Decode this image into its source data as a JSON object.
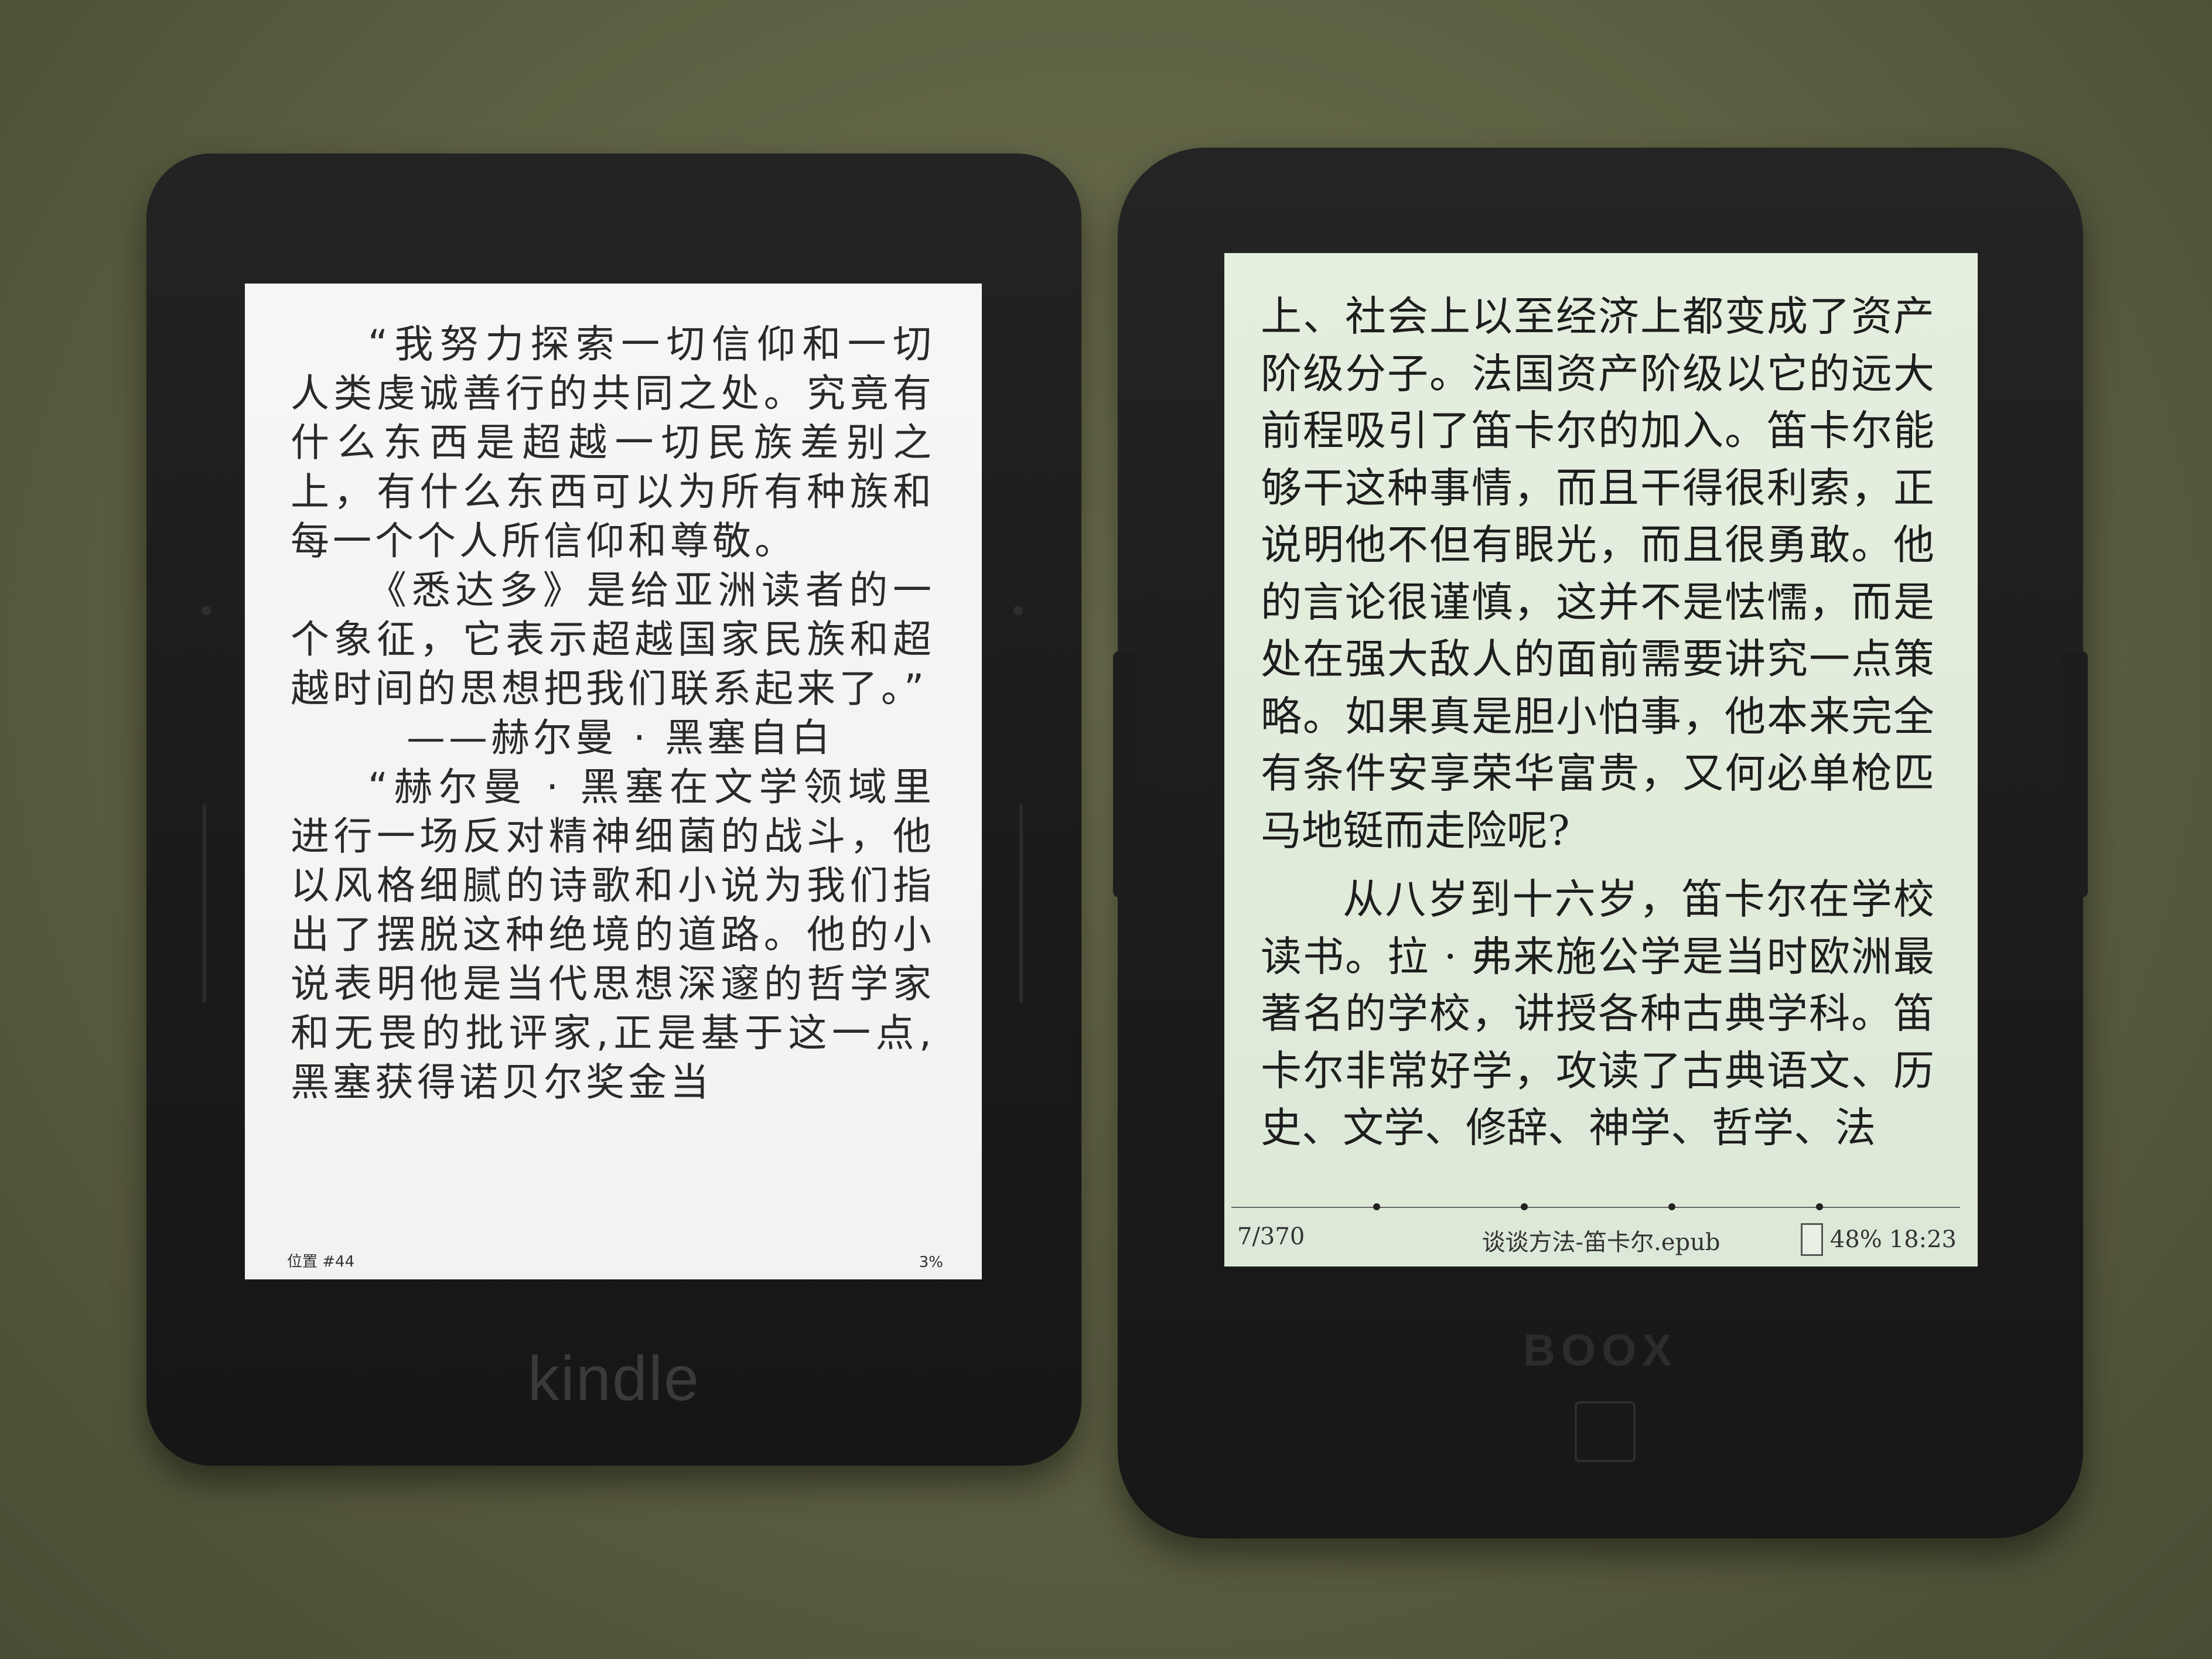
{
  "kindle": {
    "brand": "kindle",
    "paragraphs": [
      "“我努力探索一切信仰和一切人类虔诚善行的共同之处。究竟有什么东西是超越一切民族差别之上，有什么东西可以为所有种族和每一个个人所信仰和尊敬。",
      "《悉达多》是给亚洲读者的一个象征，它表示超越国家民族和超越时间的思想把我们联系起来了。”",
      "——赫尔曼 · 黑塞自白",
      "“赫尔曼 · 黑塞在文学领域里进行一场反对精神细菌的战斗，他以风格细腻的诗歌和小说为我们指出了摆脱这种绝境的道路。他的小说表明他是当代思想深邃的哲学家和无畏的批评家,正是基于这一点,黑塞获得诺贝尔奖金当"
    ],
    "footer": {
      "location": "位置 #44",
      "progress": "3%"
    }
  },
  "boox": {
    "brand": "BOOX",
    "paragraphs": [
      "上、社会上以至经济上都变成了资产阶级分子。法国资产阶级以它的远大前程吸引了笛卡尔的加入。笛卡尔能够干这种事情，而且干得很利索，正说明他不但有眼光，而且很勇敢。他的言论很谨慎，这并不是怯懦，而是处在强大敌人的面前需要讲究一点策略。如果真是胆小怕事，他本来完全有条件安享荣华富贵，又何必单枪匹马地铤而走险呢?",
      "从八岁到十六岁，笛卡尔在学校读书。拉 · 弗来施公学是当时欧洲最著名的学校，讲授各种古典学科。笛卡尔非常好学，攻读了古典语文、历史、文学、修辞、神学、哲学、法"
    ],
    "footer": {
      "pages": "7/370",
      "filename": "谈谈方法-笛卡尔.epub",
      "battery": "48%",
      "time": "18:23"
    }
  }
}
